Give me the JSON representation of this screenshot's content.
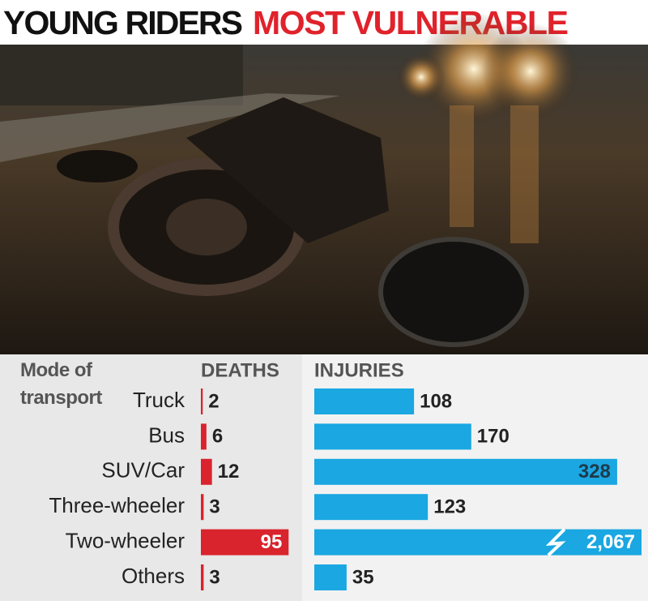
{
  "chart_data": {
    "type": "bar",
    "title": [
      "YOUNG RIDERS",
      "MOST VULNERABLE"
    ],
    "category_header": "Mode of transport",
    "categories": [
      "Truck",
      "Bus",
      "SUV/Car",
      "Three-wheeler",
      "Two-wheeler",
      "Others"
    ],
    "series": [
      {
        "name": "DEATHS",
        "color": "#d9232d",
        "values": [
          2,
          6,
          12,
          3,
          95,
          3
        ]
      },
      {
        "name": "INJURIES",
        "color": "#1aa7e2",
        "values": [
          108,
          170,
          328,
          123,
          2067,
          35
        ],
        "value_labels": [
          "108",
          "170",
          "328",
          "123",
          "2,067",
          "35"
        ]
      }
    ]
  }
}
